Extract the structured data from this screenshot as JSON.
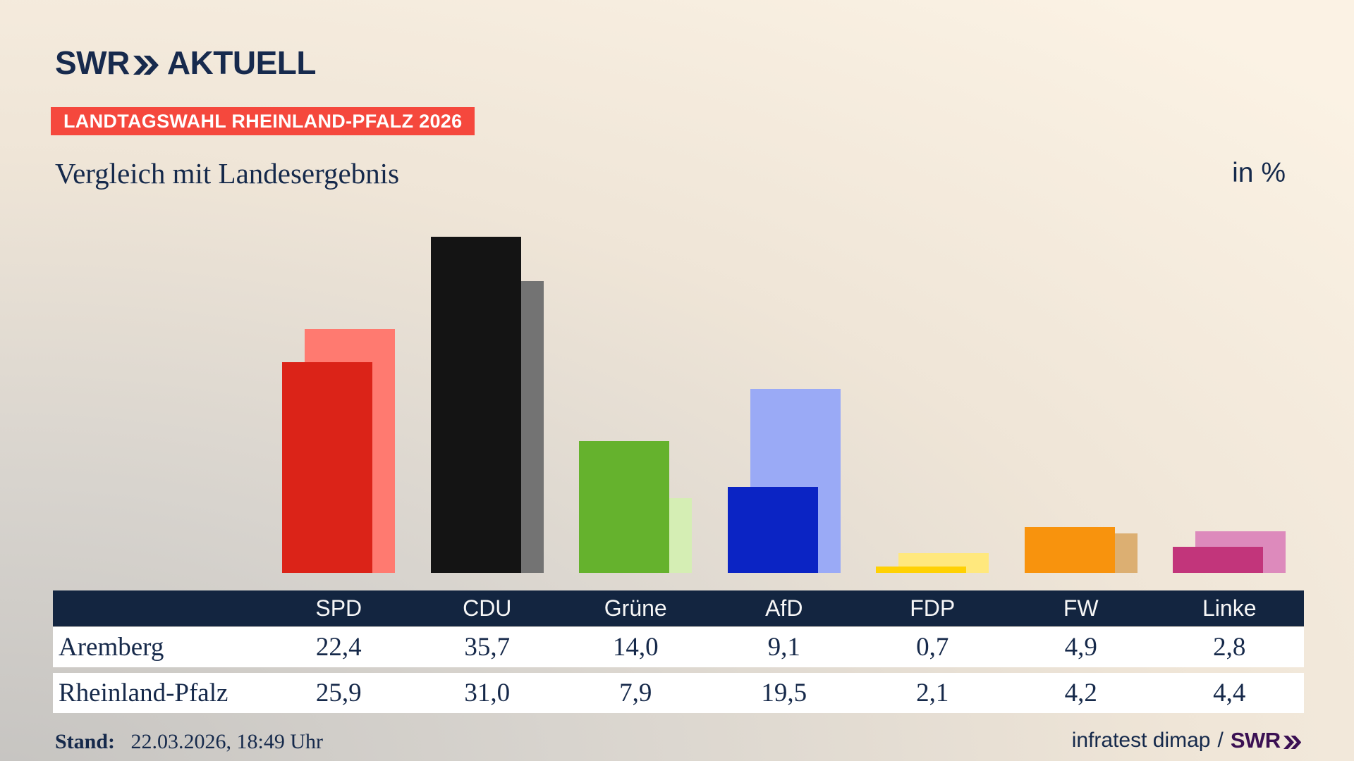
{
  "header": {
    "logo_swr": "SWR",
    "logo_aktuell": "AKTUELL",
    "badge": "LANDTAGSWAHL RHEINLAND-PFALZ 2026",
    "title": "Vergleich mit Landesergebnis",
    "unit_label": "in %"
  },
  "chart_data": {
    "type": "bar",
    "title": "Vergleich mit Landesergebnis",
    "unit": "in %",
    "categories": [
      "SPD",
      "CDU",
      "Grüne",
      "AfD",
      "FDP",
      "FW",
      "Linke"
    ],
    "series": [
      {
        "name": "Aremberg",
        "role": "foreground",
        "values": [
          22.4,
          35.7,
          14.0,
          9.1,
          0.7,
          4.9,
          2.8
        ]
      },
      {
        "name": "Rheinland-Pfalz",
        "role": "background",
        "values": [
          25.9,
          31.0,
          7.9,
          19.5,
          2.1,
          4.2,
          4.4
        ]
      }
    ],
    "party_colors": [
      {
        "party": "SPD",
        "foreground": "#DB2318",
        "background": "#FF7A70"
      },
      {
        "party": "CDU",
        "foreground": "#141414",
        "background": "#737373"
      },
      {
        "party": "Grüne",
        "foreground": "#65B22D",
        "background": "#D5EEB4"
      },
      {
        "party": "AfD",
        "foreground": "#0B24C4",
        "background": "#9AAAF6"
      },
      {
        "party": "FDP",
        "foreground": "#FFD103",
        "background": "#FFE87D"
      },
      {
        "party": "FW",
        "foreground": "#F8930D",
        "background": "#DCAF72"
      },
      {
        "party": "Linke",
        "foreground": "#C2357B",
        "background": "#DD8ABC"
      }
    ],
    "ylim": [
      0,
      40
    ],
    "grid": false,
    "legend": "values shown in table below chart",
    "value_format": "german decimal comma, one decimal"
  },
  "footer": {
    "stand_label": "Stand:",
    "stand_value": "22.03.2026, 18:49 Uhr",
    "source": "infratest dimap",
    "separator": "/",
    "swr": "SWR"
  },
  "colors": {
    "background_gradient": [
      "#c6c4c1",
      "#fbf2e4"
    ],
    "text_navy": "#15294B",
    "logo_navy": "#172A4D",
    "badge_red": "#F5483D",
    "badge_text": "#FFFFFF",
    "table_header_bg": "#132540",
    "table_header_text": "#F7F7F7",
    "table_row_bg": "#FFFFFF",
    "swr_footer_purple": "#3B1053"
  }
}
